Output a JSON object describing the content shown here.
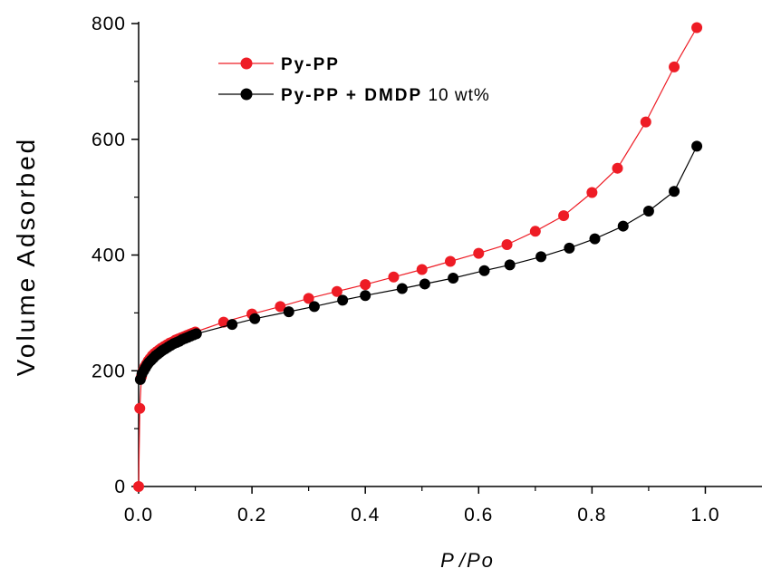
{
  "chart_data": {
    "type": "line",
    "xlabel_main": "P",
    "xlabel_sep": "/",
    "xlabel_sub": "Po",
    "ylabel": "Volume Adsorbed",
    "xlim": [
      0.0,
      1.1
    ],
    "ylim": [
      0,
      800
    ],
    "x_ticks": [
      0.0,
      0.2,
      0.4,
      0.6,
      0.8,
      1.0
    ],
    "x_tick_labels": [
      "0.0",
      "0.2",
      "0.4",
      "0.6",
      "0.8",
      "1.0"
    ],
    "y_ticks": [
      0,
      200,
      400,
      600,
      800
    ],
    "y_tick_labels": [
      "0",
      "200",
      "400",
      "600",
      "800"
    ],
    "grid": false,
    "legend_position": "top-left",
    "series": [
      {
        "name": "Py-PP",
        "legend_bold": "Py-PP",
        "legend_rest": "",
        "color": "#ee1c25",
        "x": [
          0.0,
          0.002,
          0.005,
          0.008,
          0.011,
          0.014,
          0.017,
          0.02,
          0.024,
          0.028,
          0.032,
          0.036,
          0.04,
          0.045,
          0.05,
          0.055,
          0.06,
          0.065,
          0.07,
          0.075,
          0.08,
          0.085,
          0.09,
          0.095,
          0.1,
          0.15,
          0.2,
          0.25,
          0.3,
          0.35,
          0.4,
          0.45,
          0.5,
          0.55,
          0.6,
          0.65,
          0.7,
          0.75,
          0.8,
          0.845,
          0.895,
          0.945,
          0.985
        ],
        "y": [
          0,
          135,
          190,
          200,
          207,
          212,
          217,
          221,
          226,
          230,
          233,
          236,
          239,
          242,
          245,
          248,
          250,
          253,
          255,
          257,
          259,
          261,
          263,
          265,
          267,
          284,
          298,
          311,
          325,
          337,
          349,
          362,
          375,
          389,
          403,
          418,
          441,
          468,
          508,
          550,
          630,
          725,
          793
        ]
      },
      {
        "name": "Py-PP + DMDP 10 wt%",
        "legend_bold": "Py-PP + DMDP",
        "legend_rest": " 10 wt%",
        "color": "#000000",
        "x": [
          0.003,
          0.006,
          0.009,
          0.012,
          0.015,
          0.018,
          0.022,
          0.026,
          0.03,
          0.034,
          0.038,
          0.042,
          0.047,
          0.052,
          0.057,
          0.062,
          0.067,
          0.072,
          0.077,
          0.082,
          0.087,
          0.092,
          0.097,
          0.102,
          0.165,
          0.205,
          0.265,
          0.31,
          0.36,
          0.4,
          0.465,
          0.505,
          0.555,
          0.61,
          0.655,
          0.71,
          0.76,
          0.805,
          0.855,
          0.9,
          0.945,
          0.985
        ],
        "y": [
          185,
          195,
          200,
          205,
          210,
          214,
          218,
          222,
          226,
          229,
          232,
          235,
          238,
          241,
          244,
          247,
          249,
          251,
          254,
          256,
          258,
          260,
          262,
          264,
          280,
          290,
          302,
          311,
          322,
          330,
          342,
          350,
          360,
          373,
          383,
          397,
          412,
          428,
          450,
          476,
          510,
          588
        ]
      }
    ]
  }
}
